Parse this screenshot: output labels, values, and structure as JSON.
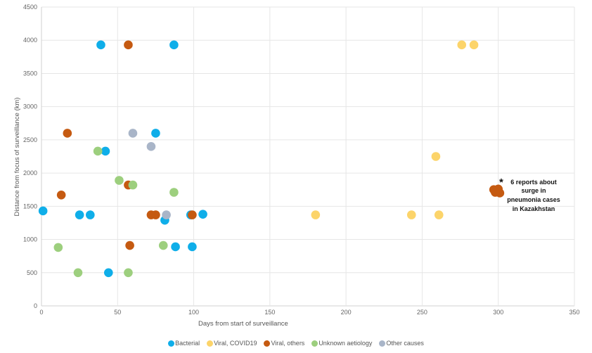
{
  "chart_data": {
    "type": "scatter",
    "title": "",
    "xlabel": "Days from start of surveillance",
    "ylabel": "Distance from focus of surveillance (km)",
    "xlim": [
      0,
      350
    ],
    "ylim": [
      0,
      4500
    ],
    "xticks": [
      "0",
      "50",
      "100",
      "150",
      "200",
      "250",
      "300",
      "350"
    ],
    "yticks": [
      "0",
      "500",
      "1000",
      "1500",
      "2000",
      "2500",
      "3000",
      "3500",
      "4000",
      "4500"
    ],
    "grid": true,
    "legend_position": "bottom",
    "series": [
      {
        "name": "Bacterial",
        "color": "#0FAEE9",
        "points": [
          [
            1,
            1430
          ],
          [
            25,
            1370
          ],
          [
            32,
            1370
          ],
          [
            39,
            3930
          ],
          [
            42,
            2330
          ],
          [
            44,
            500
          ],
          [
            75,
            2600
          ],
          [
            81,
            1290
          ],
          [
            87,
            3930
          ],
          [
            88,
            890
          ],
          [
            98,
            1370
          ],
          [
            99,
            890
          ],
          [
            106,
            1380
          ]
        ]
      },
      {
        "name": "Viral, COVID19",
        "color": "#FCD46A",
        "points": [
          [
            180,
            1370
          ],
          [
            243,
            1370
          ],
          [
            259,
            2250
          ],
          [
            261,
            1370
          ],
          [
            276,
            3930
          ],
          [
            284,
            3930
          ]
        ]
      },
      {
        "name": "Viral, others",
        "color": "#C55A11",
        "points": [
          [
            13,
            1670
          ],
          [
            17,
            2600
          ],
          [
            57,
            3930
          ],
          [
            57,
            1820
          ],
          [
            58,
            910
          ],
          [
            72,
            1370
          ],
          [
            75,
            1370
          ],
          [
            99,
            1370
          ],
          [
            297,
            1750
          ],
          [
            299,
            1720
          ],
          [
            301,
            1700
          ],
          [
            299,
            1740
          ],
          [
            300,
            1760
          ],
          [
            298,
            1710
          ]
        ]
      },
      {
        "name": "Unknown aetiology",
        "color": "#9DCF7E",
        "points": [
          [
            11,
            880
          ],
          [
            24,
            500
          ],
          [
            37,
            2330
          ],
          [
            51,
            1890
          ],
          [
            57,
            500
          ],
          [
            60,
            1820
          ],
          [
            80,
            910
          ],
          [
            87,
            1710
          ]
        ]
      },
      {
        "name": "Other causes",
        "color": "#A9B5C8",
        "points": [
          [
            60,
            2600
          ],
          [
            72,
            2400
          ],
          [
            82,
            1370
          ]
        ]
      }
    ],
    "annotations": [
      {
        "marker": "*",
        "text": [
          "6 reports about",
          "surge in",
          "pneumonia cases",
          "in Kazakhstan"
        ],
        "x": 302,
        "y": 1900
      }
    ]
  }
}
